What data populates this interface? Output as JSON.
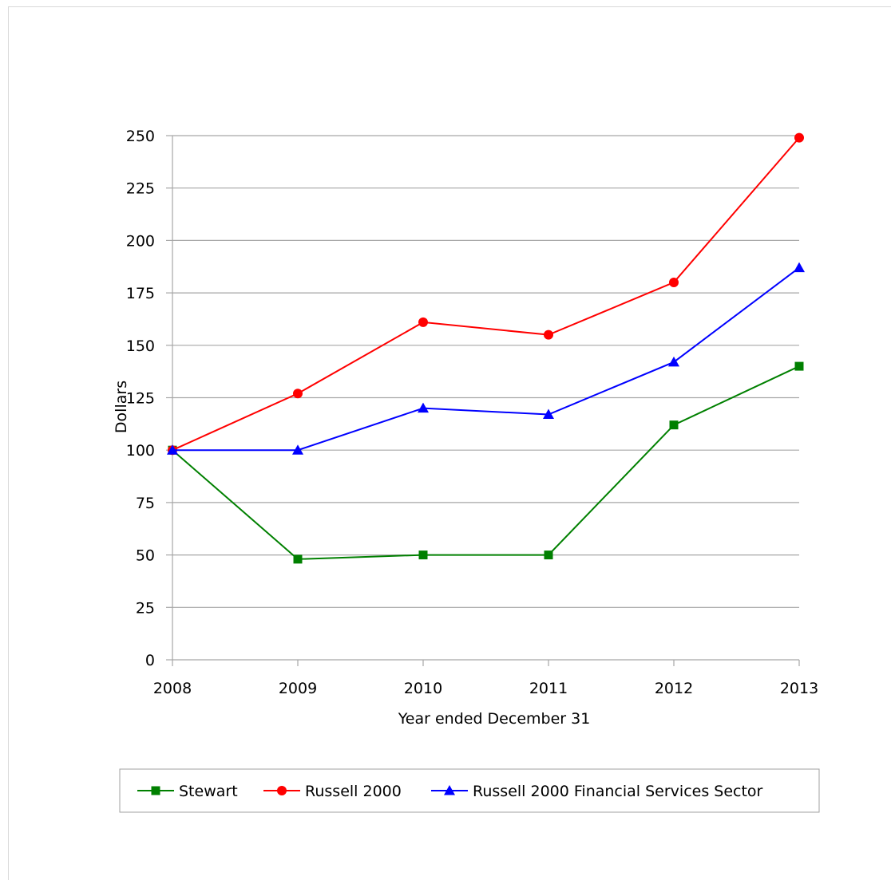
{
  "chart_data": {
    "type": "line",
    "title": "",
    "xlabel": "Year ended December 31",
    "ylabel": "Dollars",
    "x": [
      "2008",
      "2009",
      "2010",
      "2011",
      "2012",
      "2013"
    ],
    "ylim": [
      0,
      250
    ],
    "yticks": [
      "0",
      "25",
      "50",
      "75",
      "100",
      "125",
      "150",
      "175",
      "200",
      "225",
      "250"
    ],
    "grid": "horizontal",
    "legend_position": "bottom",
    "series": [
      {
        "name": "Stewart",
        "color": "#008000",
        "marker": "square",
        "values": [
          100,
          48,
          50,
          50,
          112,
          140
        ]
      },
      {
        "name": "Russell 2000",
        "color": "#ff0000",
        "marker": "circle",
        "values": [
          100,
          127,
          161,
          155,
          180,
          249
        ]
      },
      {
        "name": "Russell 2000 Financial Services Sector",
        "color": "#0000ff",
        "marker": "triangle",
        "values": [
          100,
          100,
          120,
          117,
          142,
          187
        ]
      }
    ]
  }
}
